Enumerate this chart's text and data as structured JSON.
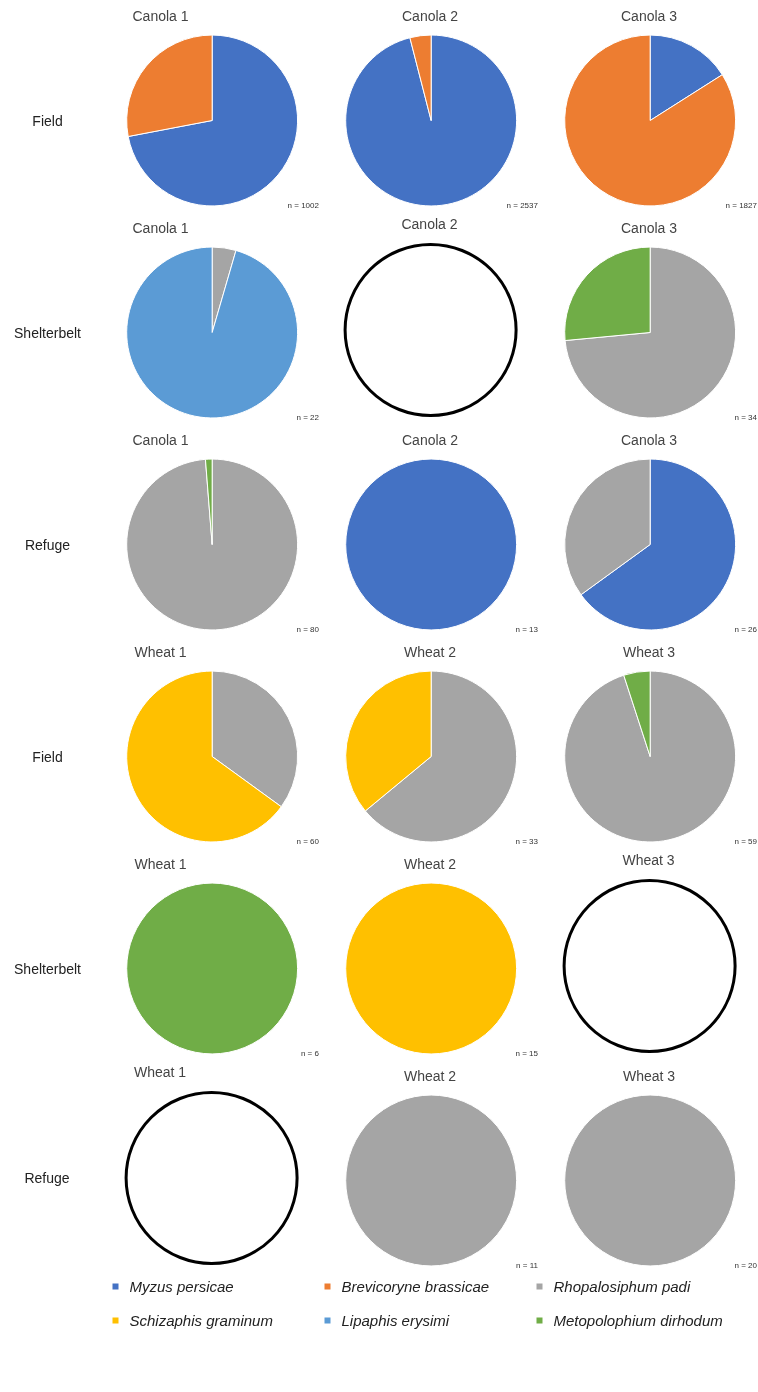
{
  "chart_data": [
    {
      "type": "pie",
      "title": "Canola 1",
      "ylabel": "Field",
      "categories": [
        null,
        null
      ],
      "values": [
        72,
        28
      ],
      "colors": [
        "#4472c4",
        "#ed7d31"
      ],
      "annotations": [
        "n = 1002"
      ]
    },
    {
      "type": "pie",
      "title": "Canola 2",
      "categories": [
        null,
        null
      ],
      "values": [
        96,
        4
      ],
      "colors": [
        "#4472c4",
        "#ed7d31"
      ],
      "annotations": [
        "n = 2537"
      ]
    },
    {
      "type": "pie",
      "title": "Canola 3",
      "categories": [
        null,
        null
      ],
      "values": [
        16,
        84
      ],
      "colors": [
        "#4472c4",
        "#ed7d31"
      ],
      "annotations": [
        "n = 1827"
      ]
    },
    {
      "type": "pie",
      "title": "Canola 1",
      "ylabel": "Shelterbelt",
      "categories": [
        null,
        null
      ],
      "values": [
        4.5,
        95.5
      ],
      "colors": [
        "#a5a5a5",
        "#5b9bd5"
      ],
      "annotations": [
        "n = 22"
      ]
    },
    {
      "type": "pie",
      "title": "Canola 2"
    },
    {
      "type": "pie",
      "title": "Canola 3",
      "categories": [
        null,
        null
      ],
      "values": [
        73.5,
        26.5
      ],
      "colors": [
        "#a5a5a5",
        "#70ad47"
      ],
      "annotations": [
        "n = 34"
      ]
    },
    {
      "type": "pie",
      "title": "Canola 1",
      "ylabel": "Refuge",
      "categories": [
        null,
        null
      ],
      "values": [
        98.75,
        1.25
      ],
      "colors": [
        "#a5a5a5",
        "#70ad47"
      ],
      "annotations": [
        "n = 80"
      ]
    },
    {
      "type": "pie",
      "title": "Canola 2",
      "categories": [
        null
      ],
      "values": [
        100
      ],
      "colors": [
        "#4472c4"
      ],
      "annotations": [
        "n = 13"
      ]
    },
    {
      "type": "pie",
      "title": "Canola 3",
      "categories": [
        null,
        null
      ],
      "values": [
        65,
        35
      ],
      "colors": [
        "#4472c4",
        "#a5a5a5"
      ],
      "annotations": [
        "n = 26"
      ]
    },
    {
      "type": "pie",
      "title": "Wheat 1",
      "ylabel": "Field",
      "categories": [
        null,
        null
      ],
      "values": [
        35,
        65
      ],
      "colors": [
        "#a5a5a5",
        "#ffc000"
      ],
      "annotations": [
        "n = 60"
      ]
    },
    {
      "type": "pie",
      "title": "Wheat 2",
      "categories": [
        null,
        null
      ],
      "values": [
        64,
        36
      ],
      "colors": [
        "#a5a5a5",
        "#ffc000"
      ],
      "annotations": [
        "n = 33"
      ]
    },
    {
      "type": "pie",
      "title": "Wheat 3",
      "categories": [
        null,
        null
      ],
      "values": [
        95,
        5
      ],
      "colors": [
        "#a5a5a5",
        "#70ad47"
      ],
      "annotations": [
        "n = 59"
      ]
    },
    {
      "type": "pie",
      "title": "Wheat 1",
      "ylabel": "Shelterbelt",
      "categories": [
        null
      ],
      "values": [
        100
      ],
      "colors": [
        "#70ad47"
      ],
      "annotations": [
        "n = 6"
      ]
    },
    {
      "type": "pie",
      "title": "Wheat 2",
      "categories": [
        null
      ],
      "values": [
        100
      ],
      "colors": [
        "#ffc000"
      ],
      "annotations": [
        "n = 15"
      ]
    },
    {
      "type": "pie",
      "title": "Wheat 3"
    },
    {
      "type": "pie",
      "title": "Wheat 1",
      "ylabel": "Refuge"
    },
    {
      "type": "pie",
      "title": "Wheat 2",
      "categories": [
        null
      ],
      "values": [
        100
      ],
      "colors": [
        "#a5a5a5"
      ],
      "annotations": [
        "n = 11"
      ]
    },
    {
      "type": "pie",
      "title": "Wheat 3",
      "categories": [
        null
      ],
      "values": [
        100
      ],
      "colors": [
        "#a5a5a5"
      ],
      "annotations": [
        "n = 20"
      ]
    },
    {
      "type": "other",
      "categories": [
        "Myzus persicae",
        "Brevicoryne brassicae",
        "Rhopalosiphum padi",
        "Schizaphis graminum",
        "Lipaphis erysimi",
        "Metopolophium dirhodum"
      ],
      "colors": [
        "#4472c4",
        "#ed7d31",
        "#a5a5a5",
        "#ffc000",
        "#5b9bd5",
        "#70ad47"
      ]
    }
  ]
}
